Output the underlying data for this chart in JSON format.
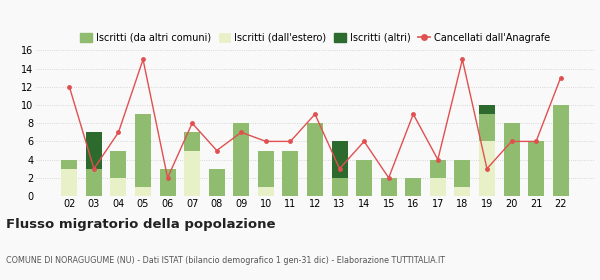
{
  "years": [
    "02",
    "03",
    "04",
    "05",
    "06",
    "07",
    "08",
    "09",
    "10",
    "11",
    "12",
    "13",
    "14",
    "15",
    "16",
    "17",
    "18",
    "19",
    "20",
    "21",
    "22"
  ],
  "iscritti_comuni": [
    1,
    3,
    3,
    8,
    3,
    2,
    3,
    8,
    4,
    5,
    8,
    2,
    4,
    2,
    2,
    2,
    3,
    3,
    8,
    6,
    10
  ],
  "iscritti_estero": [
    3,
    0,
    2,
    1,
    0,
    5,
    0,
    0,
    1,
    0,
    0,
    0,
    0,
    0,
    0,
    2,
    1,
    6,
    0,
    0,
    0
  ],
  "iscritti_altri": [
    0,
    4,
    0,
    0,
    0,
    0,
    0,
    0,
    0,
    0,
    0,
    4,
    0,
    0,
    0,
    0,
    0,
    1,
    0,
    0,
    0
  ],
  "cancellati": [
    12,
    3,
    7,
    15,
    2,
    8,
    5,
    7,
    6,
    6,
    9,
    3,
    6,
    2,
    9,
    4,
    15,
    3,
    6,
    6,
    13
  ],
  "color_comuni": "#8fbc6e",
  "color_estero": "#e8f0c8",
  "color_altri": "#2d6a2d",
  "color_cancellati": "#e05050",
  "title": "Flusso migratorio della popolazione",
  "subtitle": "COMUNE DI NORAGUGUME (NU) - Dati ISTAT (bilancio demografico 1 gen-31 dic) - Elaborazione TUTTITALIA.IT",
  "ylim": [
    0,
    16
  ],
  "yticks": [
    0,
    2,
    4,
    6,
    8,
    10,
    12,
    14,
    16
  ],
  "legend_labels": [
    "Iscritti (da altri comuni)",
    "Iscritti (dall'estero)",
    "Iscritti (altri)",
    "Cancellati dall'Anagrafe"
  ],
  "bg_color": "#f9f9f9"
}
